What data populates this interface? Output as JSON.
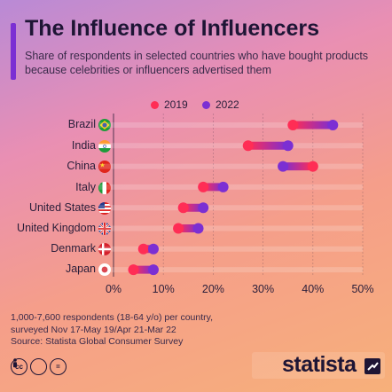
{
  "header": {
    "title": "The Influence of Influencers",
    "subtitle": "Share of respondents in selected countries who have bought products because celebrities or influencers advertised them"
  },
  "legend": [
    {
      "label": "2019",
      "color": "#ff2d55"
    },
    {
      "label": "2022",
      "color": "#7b2fd3"
    }
  ],
  "chart_data": {
    "type": "dumbbell",
    "categories": [
      "Brazil",
      "India",
      "China",
      "Italy",
      "United States",
      "United Kingdom",
      "Denmark",
      "Japan"
    ],
    "series": [
      {
        "name": "2019",
        "values": [
          36,
          27,
          40,
          18,
          14,
          13,
          6,
          4
        ]
      },
      {
        "name": "2022",
        "values": [
          44,
          35,
          34,
          22,
          18,
          17,
          8,
          8
        ]
      }
    ],
    "xlim": [
      0,
      50
    ],
    "xticks": [
      "0%",
      "10%",
      "20%",
      "30%",
      "40%",
      "50%"
    ],
    "grid": true
  },
  "footer": {
    "note_line1": "1,000-7,600 respondents (18-64 y/o) per country,",
    "note_line2": "surveyed Nov 17-May 19/Apr 21-Mar 22",
    "source": "Source: Statista Global Consumer Survey",
    "brand": "statista",
    "cc_icons": [
      "cc-icon",
      "by-icon",
      "equals-icon"
    ]
  }
}
